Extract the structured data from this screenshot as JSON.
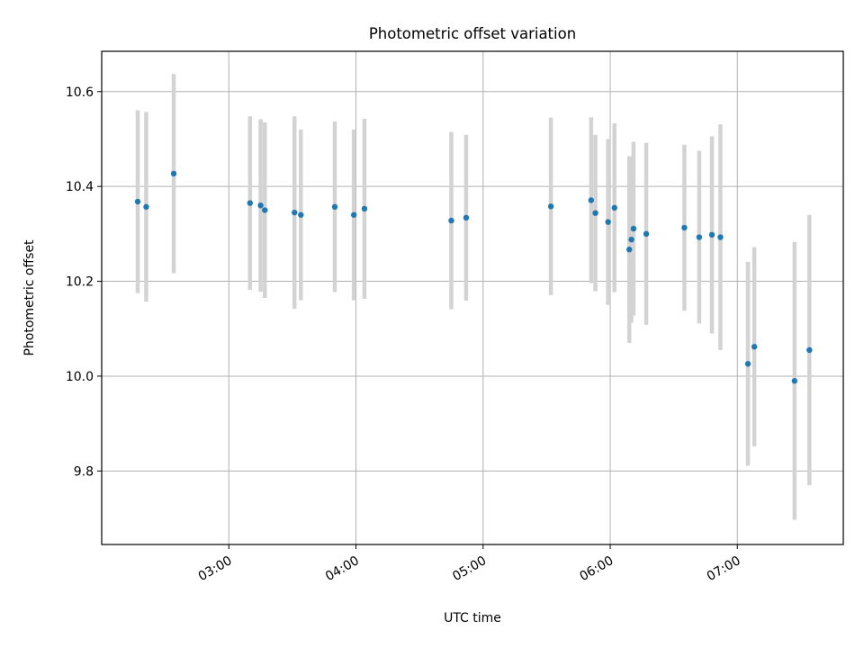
{
  "chart_data": {
    "type": "scatter",
    "title": "Photometric offset variation",
    "xlabel": "UTC time",
    "ylabel": "Photometric offset",
    "xlim": [
      "02:00",
      "07:50"
    ],
    "ylim": [
      9.645,
      10.685
    ],
    "x_ticks": [
      "03:00",
      "04:00",
      "05:00",
      "06:00",
      "07:00"
    ],
    "y_ticks": [
      "9.8",
      "10.0",
      "10.2",
      "10.4",
      "10.6"
    ],
    "grid": true,
    "marker_color": "#1f77b4",
    "errorbar_color": "#d3d3d3",
    "series": [
      {
        "points": [
          {
            "x": "02:17",
            "y": 10.368,
            "err": 0.193
          },
          {
            "x": "02:21",
            "y": 10.357,
            "err": 0.2
          },
          {
            "x": "02:34",
            "y": 10.427,
            "err": 0.21
          },
          {
            "x": "03:10",
            "y": 10.365,
            "err": 0.183
          },
          {
            "x": "03:15",
            "y": 10.36,
            "err": 0.182
          },
          {
            "x": "03:17",
            "y": 10.35,
            "err": 0.185
          },
          {
            "x": "03:31",
            "y": 10.345,
            "err": 0.203
          },
          {
            "x": "03:34",
            "y": 10.34,
            "err": 0.18
          },
          {
            "x": "03:50",
            "y": 10.357,
            "err": 0.18
          },
          {
            "x": "03:59",
            "y": 10.34,
            "err": 0.18
          },
          {
            "x": "04:04",
            "y": 10.353,
            "err": 0.19
          },
          {
            "x": "04:45",
            "y": 10.328,
            "err": 0.187
          },
          {
            "x": "04:52",
            "y": 10.334,
            "err": 0.175
          },
          {
            "x": "05:32",
            "y": 10.358,
            "err": 0.187
          },
          {
            "x": "05:51",
            "y": 10.371,
            "err": 0.175
          },
          {
            "x": "05:53",
            "y": 10.344,
            "err": 0.165
          },
          {
            "x": "05:59",
            "y": 10.325,
            "err": 0.175
          },
          {
            "x": "06:02",
            "y": 10.355,
            "err": 0.178
          },
          {
            "x": "06:09",
            "y": 10.267,
            "err": 0.197
          },
          {
            "x": "06:10",
            "y": 10.288,
            "err": 0.175
          },
          {
            "x": "06:11",
            "y": 10.311,
            "err": 0.183
          },
          {
            "x": "06:17",
            "y": 10.3,
            "err": 0.192
          },
          {
            "x": "06:35",
            "y": 10.313,
            "err": 0.175
          },
          {
            "x": "06:42",
            "y": 10.293,
            "err": 0.182
          },
          {
            "x": "06:48",
            "y": 10.298,
            "err": 0.208
          },
          {
            "x": "06:52",
            "y": 10.293,
            "err": 0.238
          },
          {
            "x": "07:05",
            "y": 10.026,
            "err": 0.215
          },
          {
            "x": "07:08",
            "y": 10.062,
            "err": 0.21
          },
          {
            "x": "07:27",
            "y": 9.99,
            "err": 0.293
          },
          {
            "x": "07:34",
            "y": 10.055,
            "err": 0.285
          }
        ]
      }
    ]
  }
}
